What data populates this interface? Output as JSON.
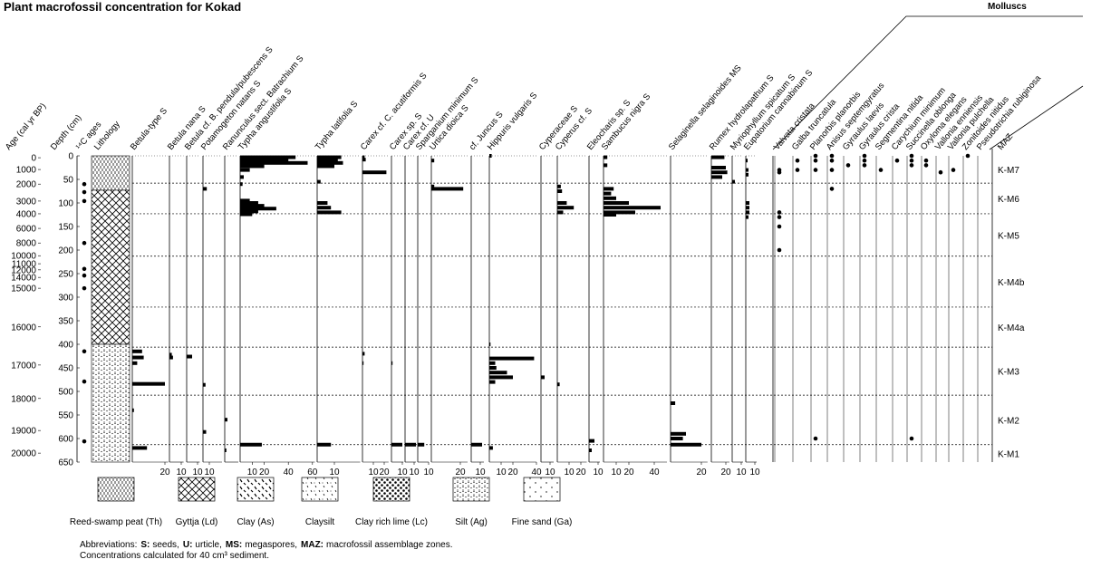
{
  "title": "Plant macrofossil concentration for Kokad",
  "headers": {
    "age": "Age (cal yr BP)",
    "depth": "Depth (cm)",
    "c14": "¹⁴C ages",
    "lithology": "Lithology",
    "maz": "MAZ"
  },
  "depth_axis": {
    "ylim": [
      0,
      650
    ],
    "ticks": [
      0,
      50,
      100,
      150,
      200,
      250,
      300,
      350,
      400,
      450,
      500,
      550,
      600,
      650
    ]
  },
  "age_ticks": [
    {
      "depth": 4,
      "age": 0
    },
    {
      "depth": 29,
      "age": 1000
    },
    {
      "depth": 60,
      "age": 2000
    },
    {
      "depth": 96,
      "age": 3000
    },
    {
      "depth": 123,
      "age": 4000
    },
    {
      "depth": 154,
      "age": 6000
    },
    {
      "depth": 185,
      "age": 8000
    },
    {
      "depth": 212,
      "age": 10000
    },
    {
      "depth": 229,
      "age": 11000
    },
    {
      "depth": 242,
      "age": 12000
    },
    {
      "depth": 258,
      "age": 14000
    },
    {
      "depth": 281,
      "age": 15000
    },
    {
      "depth": 363,
      "age": 16000
    },
    {
      "depth": 444,
      "age": 17000
    },
    {
      "depth": 515,
      "age": 18000
    },
    {
      "depth": 583,
      "age": 19000
    },
    {
      "depth": 631,
      "age": 20000
    }
  ],
  "c14_depths": [
    60,
    77,
    96,
    185,
    240,
    254,
    281,
    415,
    479,
    606
  ],
  "lithology_units": [
    {
      "top": 0,
      "bottom": 73,
      "legend": 0
    },
    {
      "top": 73,
      "bottom": 400,
      "legend": 1
    },
    {
      "top": 400,
      "bottom": 650,
      "legend": 5
    }
  ],
  "zones": [
    {
      "name": "K-M7",
      "top": 0,
      "bottom": 58
    },
    {
      "name": "K-M6",
      "top": 58,
      "bottom": 123
    },
    {
      "name": "K-M5",
      "top": 123,
      "bottom": 213
    },
    {
      "name": "K-M4b",
      "top": 213,
      "bottom": 321
    },
    {
      "name": "K-M4a",
      "top": 321,
      "bottom": 406
    },
    {
      "name": "K-M3",
      "top": 406,
      "bottom": 508
    },
    {
      "name": "K-M2",
      "top": 508,
      "bottom": 613
    },
    {
      "name": "K-M1",
      "top": 613,
      "bottom": 650
    }
  ],
  "taxa": [
    {
      "name": "Betula-type S",
      "xlim": [
        0,
        22
      ],
      "ticks": [
        20
      ],
      "depths": [
        415,
        428,
        440,
        484,
        540,
        620
      ],
      "values": [
        6,
        7,
        3,
        20,
        1,
        9
      ]
    },
    {
      "name": "Betula nana S",
      "xlim": [
        0,
        12
      ],
      "ticks": [
        10
      ],
      "depths": [
        422,
        428
      ],
      "values": [
        2,
        3
      ]
    },
    {
      "name": "Betula cf. B. pendula/pubescens S",
      "xlim": [
        0,
        12
      ],
      "ticks": [
        10
      ],
      "depths": [
        426
      ],
      "values": [
        5
      ]
    },
    {
      "name": "Potamogeton natans S",
      "xlim": [
        0,
        30
      ],
      "ticks": [
        10
      ],
      "depths": [
        70,
        486,
        586
      ],
      "values": [
        6,
        4,
        5
      ]
    },
    {
      "name": "Ranunculus sect. Batrachium S",
      "xlim": [
        0,
        25
      ],
      "depths": [
        560,
        625
      ],
      "values": [
        5,
        3
      ]
    },
    {
      "name": "Typha angustifolia S",
      "xlim": [
        0,
        62
      ],
      "ticks": [
        10,
        20,
        40,
        60
      ],
      "depths": [
        3,
        8,
        15,
        22,
        30,
        45,
        60,
        95,
        100,
        106,
        112,
        118,
        124,
        613
      ],
      "values": [
        46,
        40,
        56,
        20,
        8,
        3,
        2,
        8,
        15,
        20,
        30,
        15,
        10,
        18
      ]
    },
    {
      "name": "Typha latifolia S",
      "xlim": [
        0,
        25
      ],
      "ticks": [
        10
      ],
      "depths": [
        3,
        8,
        15,
        22,
        55,
        100,
        110,
        120,
        613
      ],
      "values": [
        14,
        12,
        15,
        10,
        2,
        6,
        8,
        14,
        8
      ]
    },
    {
      "name": "Carex cf. C. acutiformis S",
      "xlim": [
        0,
        24
      ],
      "ticks": [
        10,
        20
      ],
      "depths": [
        3,
        8,
        35,
        420,
        440
      ],
      "values": [
        2,
        3,
        22,
        2,
        1
      ]
    },
    {
      "name": "Carex sp. S",
      "xlim": [
        0,
        11
      ],
      "ticks": [
        10
      ],
      "depths": [
        440,
        613
      ],
      "values": [
        1,
        10
      ]
    },
    {
      "name": "Carex cf. U",
      "xlim": [
        0,
        12
      ],
      "ticks": [
        10
      ],
      "depths": [
        613
      ],
      "values": [
        12
      ]
    },
    {
      "name": "Sparganium minimum S",
      "xlim": [
        0,
        10
      ],
      "ticks": [
        10
      ],
      "depths": [
        613
      ],
      "values": [
        6
      ]
    },
    {
      "name": "Urtica dioica S",
      "xlim": [
        0,
        25
      ],
      "ticks": [
        20
      ],
      "depths": [
        10,
        65,
        70
      ],
      "values": [
        2,
        2,
        22
      ]
    },
    {
      "name": "cf. Juncus S",
      "xlim": [
        0,
        14
      ],
      "ticks": [
        10
      ],
      "depths": [
        613
      ],
      "values": [
        12
      ]
    },
    {
      "name": "Hippuris vulgaris S",
      "xlim": [
        0,
        40
      ],
      "ticks": [
        10,
        20,
        40
      ],
      "depths": [
        0,
        400,
        430,
        440,
        450,
        460,
        470,
        480,
        620
      ],
      "values": [
        2,
        1,
        38,
        5,
        6,
        15,
        20,
        5,
        3
      ]
    },
    {
      "name": "Cyperaceae S",
      "xlim": [
        0,
        14
      ],
      "ticks": [
        10
      ],
      "depths": [
        470
      ],
      "values": [
        4
      ]
    },
    {
      "name": "Cyperus cf. S",
      "xlim": [
        0,
        25
      ],
      "ticks": [
        10,
        20
      ],
      "depths": [
        65,
        75,
        100,
        110,
        120,
        485
      ],
      "values": [
        3,
        4,
        8,
        14,
        5,
        2
      ]
    },
    {
      "name": "Eleocharis sp. S",
      "xlim": [
        0,
        12
      ],
      "ticks": [
        10
      ],
      "depths": [
        605,
        625
      ],
      "values": [
        6,
        3
      ]
    },
    {
      "name": "Sambucus nigra S",
      "xlim": [
        0,
        50
      ],
      "ticks": [
        10,
        20,
        40
      ],
      "depths": [
        3,
        20,
        70,
        80,
        90,
        100,
        110,
        120,
        125
      ],
      "values": [
        3,
        3,
        8,
        6,
        10,
        20,
        45,
        25,
        10
      ]
    },
    {
      "name": "Selaginella selaginoides MS",
      "xlim": [
        0,
        24
      ],
      "ticks": [
        20
      ],
      "depths": [
        525,
        590,
        600,
        613
      ],
      "values": [
        3,
        10,
        8,
        20
      ]
    },
    {
      "name": "Rumex hydrolapathum S",
      "xlim": [
        0,
        25
      ],
      "ticks": [
        20
      ],
      "depths": [
        3,
        25,
        35,
        45
      ],
      "values": [
        18,
        20,
        22,
        15
      ]
    },
    {
      "name": "Myriophyllum spicatum S",
      "xlim": [
        0,
        12
      ],
      "ticks": [
        10
      ],
      "depths": [
        55
      ],
      "values": [
        3
      ]
    },
    {
      "name": "Eupatorium cannabinum S",
      "xlim": [
        0,
        12
      ],
      "ticks": [
        10
      ],
      "depths": [
        10,
        30,
        40,
        100,
        110,
        120,
        130
      ],
      "values": [
        2,
        3,
        3,
        4,
        4,
        4,
        3
      ]
    }
  ],
  "molluscs": {
    "title": "Molluscs",
    "taxa": [
      {
        "name": "Valvata cristata",
        "depths": [
          30,
          35,
          120,
          130,
          150,
          200
        ]
      },
      {
        "name": "Galba truncatula",
        "depths": [
          10,
          30
        ]
      },
      {
        "name": "Planorbis planorbis",
        "depths": [
          0,
          10,
          30,
          600
        ]
      },
      {
        "name": "Anisus septemgyratus",
        "depths": [
          0,
          10,
          30,
          70
        ]
      },
      {
        "name": "Gyraulus laevis",
        "depths": [
          20
        ]
      },
      {
        "name": "Gyraulus crista",
        "depths": [
          0,
          10,
          20
        ]
      },
      {
        "name": "Segmentina nitida",
        "depths": [
          30
        ]
      },
      {
        "name": "Carychium minimum",
        "depths": [
          10
        ]
      },
      {
        "name": "Succinella oblonga",
        "depths": [
          0,
          10,
          20,
          600
        ]
      },
      {
        "name": "Oxyloma elegans",
        "depths": [
          10,
          20
        ]
      },
      {
        "name": "Vallonia enniensis",
        "depths": [
          35
        ]
      },
      {
        "name": "Vallonia pulchella",
        "depths": [
          30
        ]
      },
      {
        "name": "Zonitoides nitidus",
        "depths": [
          0
        ]
      },
      {
        "name": "Pseudotrichia rubiginosa",
        "depths": []
      }
    ]
  },
  "legend": [
    {
      "label": "Reed-swamp peat (Th)",
      "pattern": "peat"
    },
    {
      "label": "Gyttja (Ld)",
      "pattern": "cross"
    },
    {
      "label": "Clay (As)",
      "pattern": "clay"
    },
    {
      "label": "Claysilt",
      "pattern": "claysilt"
    },
    {
      "label": "Clay rich lime (Lc)",
      "pattern": "lime"
    },
    {
      "label": "Silt (Ag)",
      "pattern": "silt"
    },
    {
      "label": "Fine sand (Ga)",
      "pattern": "sand"
    }
  ],
  "notes": {
    "lead": "Abbreviations:",
    "items": [
      {
        "term": "S:",
        "text": "seeds,"
      },
      {
        "term": "U:",
        "text": "urticle,"
      },
      {
        "term": "MS:",
        "text": "megaspores,"
      },
      {
        "term": "MAZ:",
        "text": "macrofossil assemblage zones."
      }
    ],
    "line2": "Concentrations calculated for 40 cm³ sediment."
  }
}
